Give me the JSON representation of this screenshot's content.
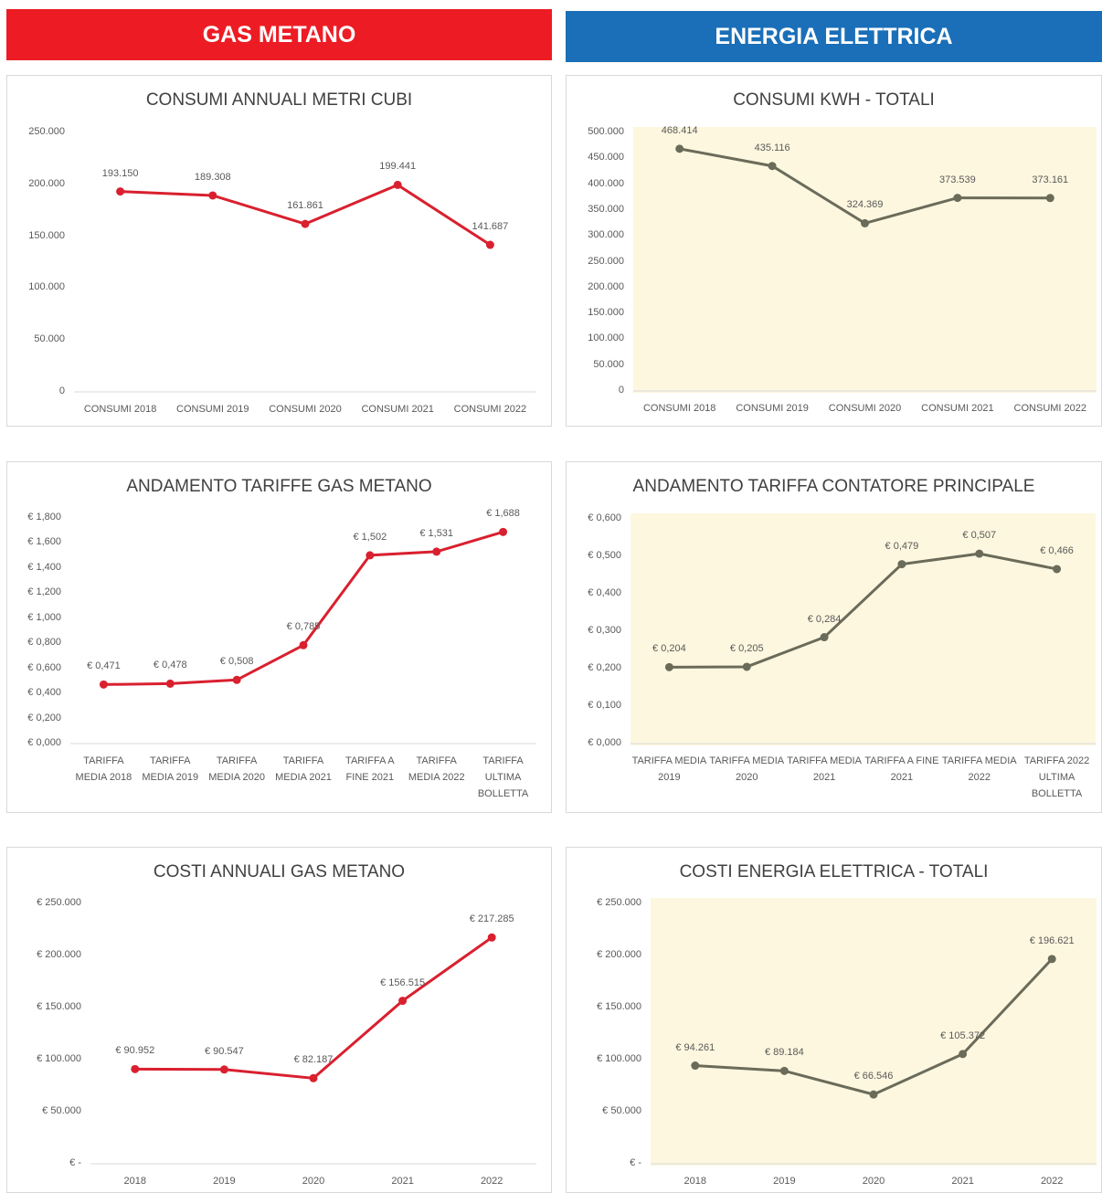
{
  "headers": [
    "GAS METANO",
    "ENERGIA ELETTRICA"
  ],
  "chart_data": [
    {
      "type": "line",
      "title": "CONSUMI ANNUALI METRI CUBI",
      "color": "#d9202f",
      "background": "#ffffff",
      "grid": false,
      "categories": [
        "CONSUMI 2018",
        "CONSUMI 2019",
        "CONSUMI 2020",
        "CONSUMI 2021",
        "CONSUMI 2022"
      ],
      "values": [
        193150,
        189308,
        161861,
        199441,
        141687
      ],
      "value_labels": [
        "193.150",
        "189.308",
        "161.861",
        "199.441",
        "141.687"
      ],
      "ylim": [
        0,
        250000
      ],
      "yticks": [
        0,
        {
          "value": 50000,
          "label": "50.000"
        },
        {
          "value": 100000,
          "label": "100.000"
        },
        {
          "value": 150000,
          "label": "150.000"
        },
        {
          "value": 200000,
          "label": "200.000"
        },
        {
          "value": 250000,
          "label": "250.000"
        }
      ]
    },
    {
      "type": "line",
      "title": "CONSUMI KWH - TOTALI",
      "color": "#6b6b5a",
      "background": "#fdf7df",
      "grid": false,
      "categories": [
        "CONSUMI 2018",
        "CONSUMI 2019",
        "CONSUMI 2020",
        "CONSUMI 2021",
        "CONSUMI 2022"
      ],
      "values": [
        468414,
        435116,
        324369,
        373539,
        373161
      ],
      "value_labels": [
        "468.414",
        "435.116",
        "324.369",
        "373.539",
        "373.161"
      ],
      "ylim": [
        0,
        500000
      ],
      "yticks": [
        0,
        {
          "value": 50000,
          "label": "50.000"
        },
        {
          "value": 100000,
          "label": "100.000"
        },
        {
          "value": 150000,
          "label": "150.000"
        },
        {
          "value": 200000,
          "label": "200.000"
        },
        {
          "value": 250000,
          "label": "250.000"
        },
        {
          "value": 300000,
          "label": "300.000"
        },
        {
          "value": 350000,
          "label": "350.000"
        },
        {
          "value": 400000,
          "label": "400.000"
        },
        {
          "value": 450000,
          "label": "450.000"
        },
        {
          "value": 500000,
          "label": "500.000"
        }
      ]
    },
    {
      "type": "line",
      "title": "ANDAMENTO TARIFFE GAS METANO",
      "color": "#d9202f",
      "background": "#ffffff",
      "grid": false,
      "categories": [
        "TARIFFA MEDIA 2018",
        "TARIFFA MEDIA 2019",
        "TARIFFA MEDIA 2020",
        "TARIFFA MEDIA 2021",
        "TARIFFA A FINE 2021",
        "TARIFFA MEDIA 2022",
        "TARIFFA ULTIMA BOLLETTA"
      ],
      "values": [
        0.471,
        0.478,
        0.508,
        0.785,
        1.502,
        1.531,
        1.688
      ],
      "value_labels": [
        "€ 0,471",
        "€ 0,478",
        "€ 0,508",
        "€ 0,785",
        "€ 1,502",
        "€ 1,531",
        "€ 1,688"
      ],
      "ylim": [
        0,
        1.8
      ],
      "yticks": [
        {
          "value": 0,
          "label": "€ 0,000"
        },
        {
          "value": 0.2,
          "label": "€ 0,200"
        },
        {
          "value": 0.4,
          "label": "€ 0,400"
        },
        {
          "value": 0.6,
          "label": "€ 0,600"
        },
        {
          "value": 0.8,
          "label": "€ 0,800"
        },
        {
          "value": 1.0,
          "label": "€ 1,000"
        },
        {
          "value": 1.2,
          "label": "€ 1,200"
        },
        {
          "value": 1.4,
          "label": "€ 1,400"
        },
        {
          "value": 1.6,
          "label": "€ 1,600"
        },
        {
          "value": 1.8,
          "label": "€ 1,800"
        }
      ]
    },
    {
      "type": "line",
      "title": "ANDAMENTO TARIFFA CONTATORE PRINCIPALE",
      "color": "#6b6b5a",
      "background": "#fdf7df",
      "grid": false,
      "categories": [
        "TARIFFA MEDIA 2019",
        "TARIFFA MEDIA 2020",
        "TARIFFA MEDIA 2021",
        "TARIFFA A FINE 2021",
        "TARIFFA MEDIA 2022",
        "TARIFFA 2022 ULTIMA BOLLETTA"
      ],
      "values": [
        0.204,
        0.205,
        0.284,
        0.479,
        0.507,
        0.466
      ],
      "value_labels": [
        "€ 0,204",
        "€ 0,205",
        "€ 0,284",
        "€ 0,479",
        "€ 0,507",
        "€ 0,466"
      ],
      "ylim": [
        0,
        0.6
      ],
      "yticks": [
        {
          "value": 0,
          "label": "€ 0,000"
        },
        {
          "value": 0.1,
          "label": "€ 0,100"
        },
        {
          "value": 0.2,
          "label": "€ 0,200"
        },
        {
          "value": 0.3,
          "label": "€ 0,300"
        },
        {
          "value": 0.4,
          "label": "€ 0,400"
        },
        {
          "value": 0.5,
          "label": "€ 0,500"
        },
        {
          "value": 0.6,
          "label": "€ 0,600"
        }
      ]
    },
    {
      "type": "line",
      "title": "COSTI ANNUALI GAS METANO",
      "color": "#d9202f",
      "background": "#ffffff",
      "grid": false,
      "categories": [
        "2018",
        "2019",
        "2020",
        "2021",
        "2022"
      ],
      "values": [
        90952,
        90547,
        82187,
        156515,
        217285
      ],
      "value_labels": [
        "€ 90.952",
        "€ 90.547",
        "€ 82.187",
        "€ 156.515",
        "€ 217.285"
      ],
      "ylim": [
        0,
        250000
      ],
      "yticks": [
        {
          "value": 0,
          "label": "€ -"
        },
        {
          "value": 50000,
          "label": "€ 50.000"
        },
        {
          "value": 100000,
          "label": "€ 100.000"
        },
        {
          "value": 150000,
          "label": "€ 150.000"
        },
        {
          "value": 200000,
          "label": "€ 200.000"
        },
        {
          "value": 250000,
          "label": "€ 250.000"
        }
      ]
    },
    {
      "type": "line",
      "title": "COSTI ENERGIA ELETTRICA - TOTALI",
      "color": "#6b6b5a",
      "background": "#fdf7df",
      "grid": false,
      "categories": [
        "2018",
        "2019",
        "2020",
        "2021",
        "2022"
      ],
      "values": [
        94261,
        89184,
        66546,
        105372,
        196621
      ],
      "value_labels": [
        "€ 94.261",
        "€ 89.184",
        "€ 66.546",
        "€ 105.372",
        "€ 196.621"
      ],
      "ylim": [
        0,
        250000
      ],
      "yticks": [
        {
          "value": 0,
          "label": "€ -"
        },
        {
          "value": 50000,
          "label": "€ 50.000"
        },
        {
          "value": 100000,
          "label": "€ 100.000"
        },
        {
          "value": 150000,
          "label": "€ 150.000"
        },
        {
          "value": 200000,
          "label": "€ 200.000"
        },
        {
          "value": 250000,
          "label": "€ 250.000"
        }
      ]
    }
  ]
}
